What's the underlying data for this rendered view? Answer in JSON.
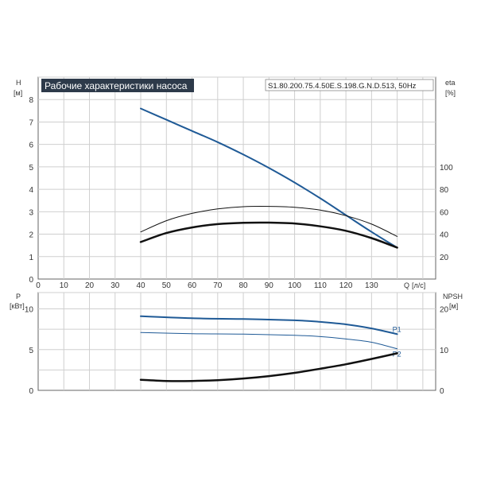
{
  "chart_data": [
    {
      "type": "line",
      "title": "Рабочие характеристики насоса",
      "model": "S1.80.200.75.4.50E.S.198.G.N.D.513, 50Hz",
      "left_axis": {
        "symbol": "H",
        "unit": "[м]",
        "ticks": [
          "0",
          "1",
          "2",
          "3",
          "4",
          "5",
          "6",
          "7",
          "8"
        ],
        "range": [
          0,
          9
        ]
      },
      "right_axis": {
        "symbol": "eta",
        "unit": "[%]",
        "ticks": [
          "20",
          "40",
          "60",
          "80",
          "100"
        ],
        "range": [
          0,
          180
        ]
      },
      "x_axis": {
        "symbol": "Q",
        "unit": "[л/с]",
        "ticks": [
          "0",
          "10",
          "20",
          "30",
          "40",
          "50",
          "60",
          "70",
          "80",
          "90",
          "100",
          "110",
          "120",
          "130"
        ],
        "range": [
          0,
          155
        ]
      },
      "grid": true,
      "series": [
        {
          "axis": "left",
          "color": "#1f5a96",
          "width": 2,
          "x": [
            40,
            50,
            60,
            70,
            80,
            90,
            100,
            110,
            120,
            130,
            140
          ],
          "values": [
            7.6,
            7.1,
            6.6,
            6.1,
            5.55,
            4.95,
            4.3,
            3.6,
            2.85,
            2.1,
            1.4
          ]
        },
        {
          "axis": "right",
          "color": "#111111",
          "width": 1,
          "x": [
            40,
            50,
            60,
            70,
            80,
            90,
            100,
            110,
            120,
            130,
            140
          ],
          "values": [
            42,
            52,
            58.5,
            62.5,
            64.5,
            64.8,
            64,
            61.5,
            56.5,
            49,
            38
          ]
        },
        {
          "axis": "right",
          "color": "#111111",
          "width": 2.5,
          "x": [
            40,
            50,
            60,
            70,
            80,
            90,
            100,
            110,
            120,
            130,
            140
          ],
          "values": [
            33,
            41,
            46,
            49,
            50.2,
            50.3,
            49.5,
            47,
            43,
            36.5,
            28
          ]
        }
      ]
    },
    {
      "type": "line",
      "left_axis": {
        "symbol": "P",
        "unit": "[кВт]",
        "ticks": [
          "0",
          "5",
          "10"
        ],
        "range": [
          0,
          12
        ]
      },
      "right_axis": {
        "symbol": "NPSH",
        "unit": "[м]",
        "ticks": [
          "0",
          "10",
          "20"
        ],
        "range": [
          0,
          24
        ]
      },
      "x_axis": {
        "range": [
          0,
          155
        ]
      },
      "grid": true,
      "series": [
        {
          "name": "P1",
          "axis": "left",
          "color": "#1f5a96",
          "width": 2,
          "x": [
            40,
            60,
            80,
            100,
            110,
            120,
            130,
            140
          ],
          "values": [
            9.1,
            8.85,
            8.75,
            8.6,
            8.4,
            8.1,
            7.6,
            6.9
          ]
        },
        {
          "name": "P2",
          "axis": "left",
          "color": "#1f5a96",
          "width": 1,
          "x": [
            40,
            60,
            80,
            100,
            110,
            120,
            130,
            140
          ],
          "values": [
            7.1,
            6.95,
            6.9,
            6.75,
            6.6,
            6.3,
            5.9,
            5.1
          ]
        },
        {
          "axis": "right",
          "color": "#111111",
          "width": 2.5,
          "x": [
            40,
            50,
            60,
            70,
            80,
            90,
            100,
            110,
            120,
            130,
            140
          ],
          "values": [
            2.6,
            2.3,
            2.3,
            2.5,
            2.9,
            3.5,
            4.3,
            5.3,
            6.4,
            7.7,
            9.1
          ]
        }
      ]
    }
  ]
}
